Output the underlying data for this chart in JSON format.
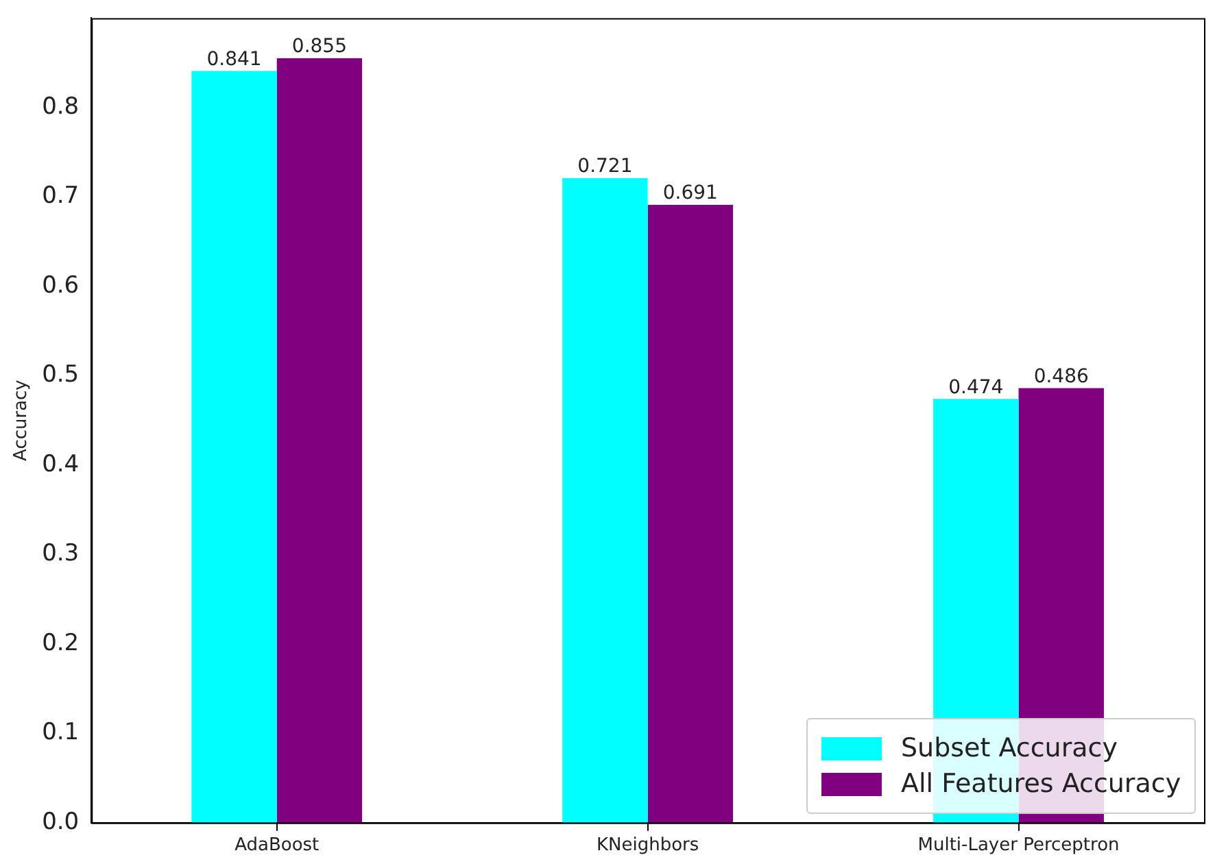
{
  "chart_data": {
    "type": "bar",
    "ylabel": "Accuracy",
    "categories": [
      "AdaBoost",
      "KNeighbors",
      "Multi-Layer Perceptron"
    ],
    "series": [
      {
        "name": "Subset Accuracy",
        "color": "#00ffff",
        "values": [
          0.841,
          0.721,
          0.474
        ]
      },
      {
        "name": "All Features Accuracy",
        "color": "#800080",
        "values": [
          0.855,
          0.691,
          0.486
        ]
      }
    ],
    "ylim": [
      0,
      0.9
    ],
    "yticks": [
      {
        "value": 0,
        "label": "0.0"
      },
      {
        "value": 0.1,
        "label": "0.1"
      },
      {
        "value": 0.2,
        "label": "0.2"
      },
      {
        "value": 0.3,
        "label": "0.3"
      },
      {
        "value": 0.4,
        "label": "0.4"
      },
      {
        "value": 0.5,
        "label": "0.5"
      },
      {
        "value": 0.6,
        "label": "0.6"
      },
      {
        "value": 0.7,
        "label": "0.7"
      },
      {
        "value": 0.8,
        "label": "0.8"
      }
    ],
    "data_labels": true,
    "grid": false,
    "legend": "bottom right"
  }
}
